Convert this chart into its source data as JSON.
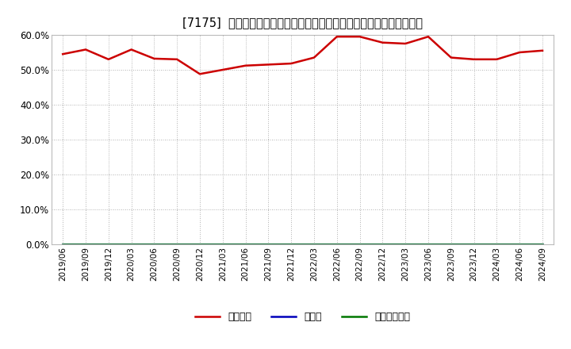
{
  "title": "[7175]  自己資本、のれん、繰延税金資産の総資産に対する比率の推移",
  "x_labels": [
    "2019/06",
    "2019/09",
    "2019/12",
    "2020/03",
    "2020/06",
    "2020/09",
    "2020/12",
    "2021/03",
    "2021/06",
    "2021/09",
    "2021/12",
    "2022/03",
    "2022/06",
    "2022/09",
    "2022/12",
    "2023/03",
    "2023/06",
    "2023/09",
    "2023/12",
    "2024/03",
    "2024/06",
    "2024/09"
  ],
  "equity_values": [
    54.5,
    55.8,
    53.0,
    55.8,
    53.2,
    53.0,
    48.8,
    50.0,
    51.2,
    51.5,
    51.8,
    53.5,
    59.5,
    59.5,
    57.8,
    57.5,
    59.5,
    53.5,
    53.0,
    53.0,
    55.0,
    55.5
  ],
  "noren_values": [
    0,
    0,
    0,
    0,
    0,
    0,
    0,
    0,
    0,
    0,
    0,
    0,
    0,
    0,
    0,
    0,
    0,
    0,
    0,
    0,
    0,
    0
  ],
  "deferred_values": [
    0,
    0,
    0,
    0,
    0,
    0,
    0,
    0,
    0,
    0,
    0,
    0,
    0,
    0,
    0,
    0,
    0,
    0,
    0,
    0,
    0,
    0
  ],
  "equity_color": "#cc0000",
  "noren_color": "#0000bb",
  "deferred_color": "#007700",
  "bg_color": "#ffffff",
  "plot_bg_color": "#ffffff",
  "grid_color": "#999999",
  "ylim": [
    0,
    60
  ],
  "yticks": [
    0,
    10,
    20,
    30,
    40,
    50,
    60
  ],
  "legend_labels": [
    "自己資本",
    "のれん",
    "繰延税金資産"
  ]
}
